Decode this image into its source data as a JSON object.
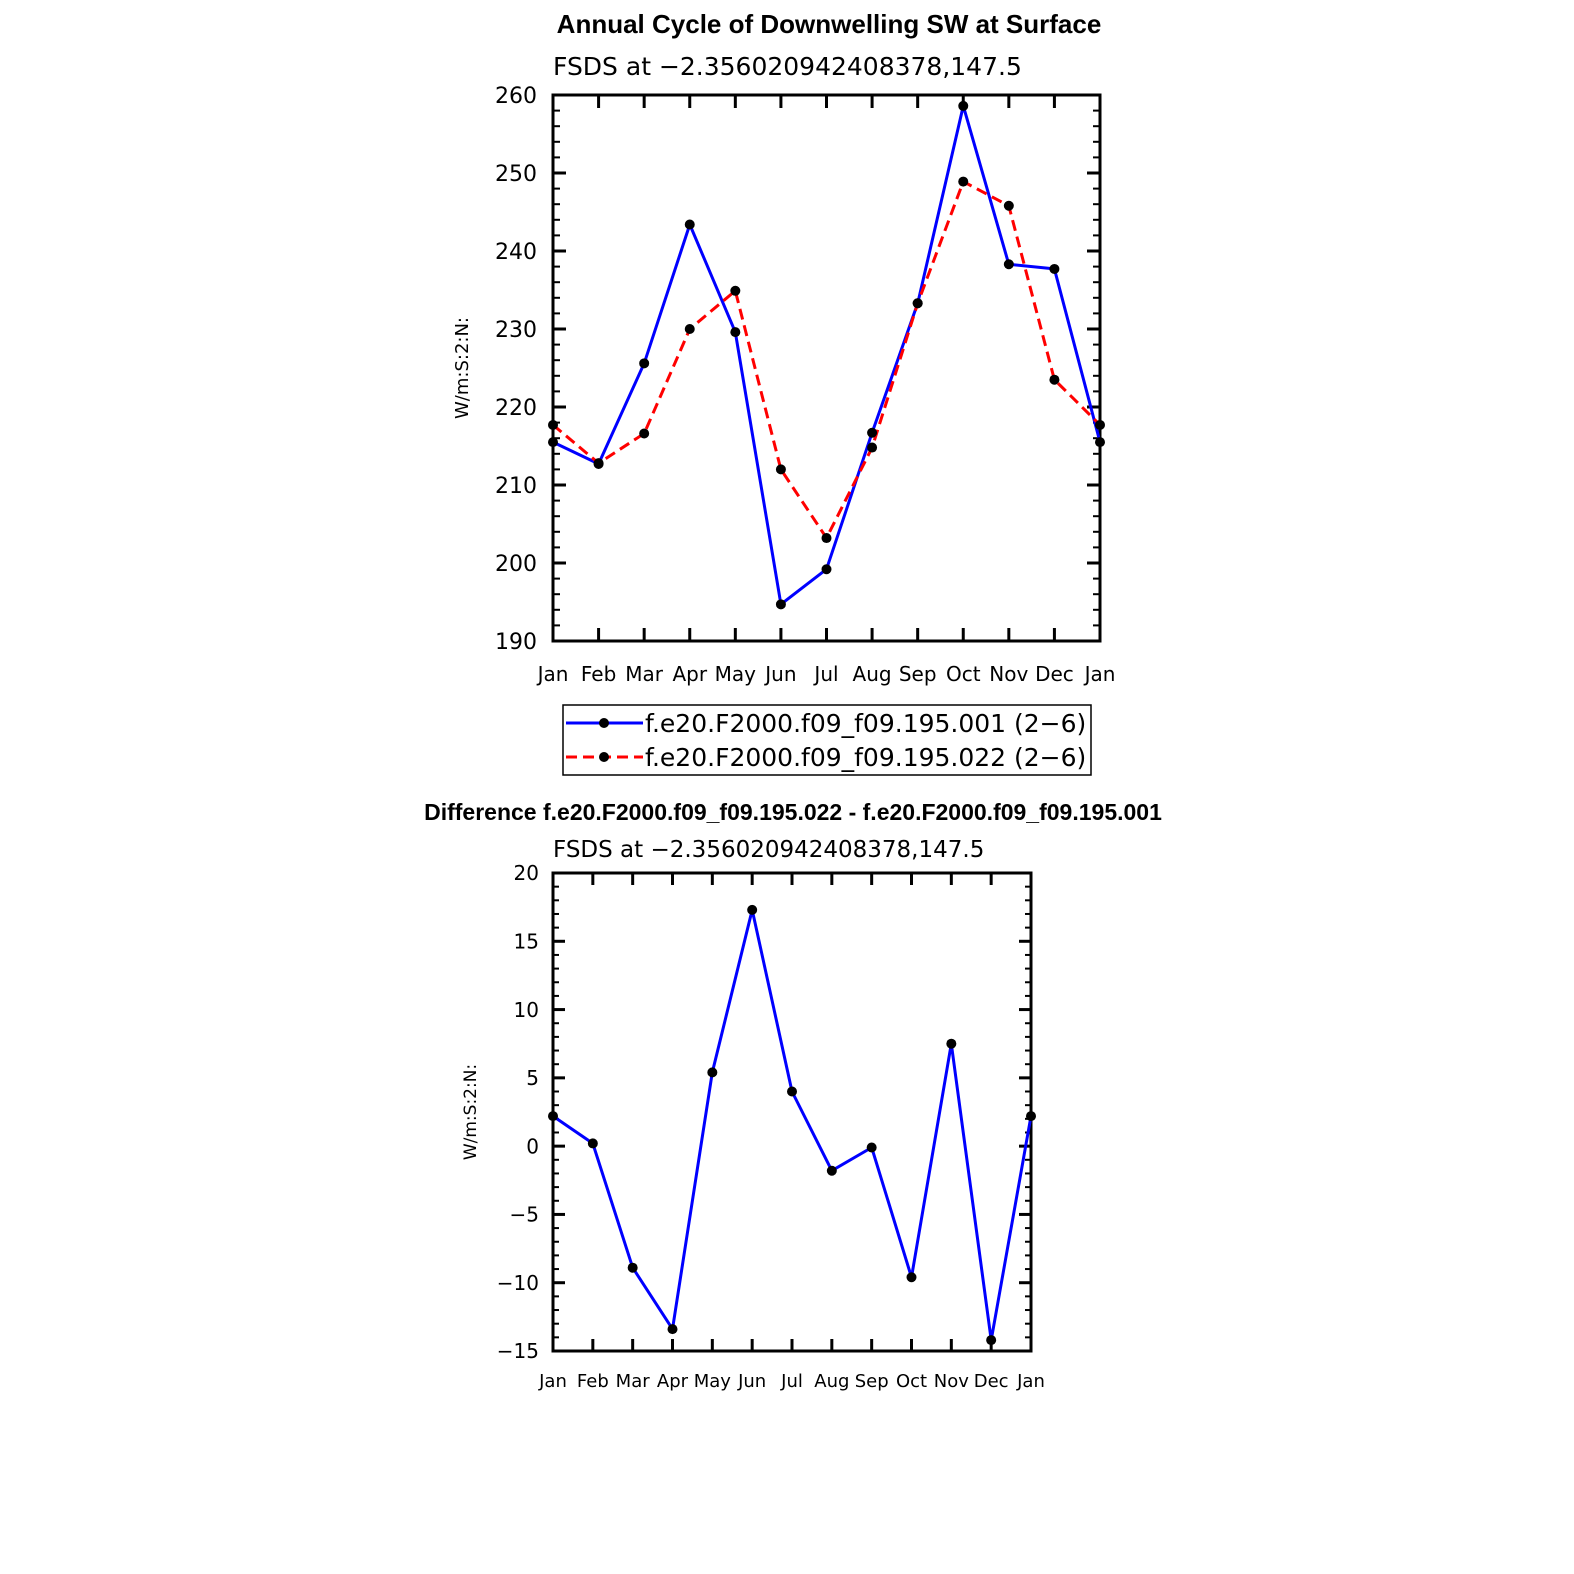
{
  "chart_data": [
    {
      "type": "line",
      "title": "Annual Cycle of Downwelling SW at Surface",
      "subtitle": "FSDS at −2.356020942408378,147.5",
      "ylabel": "W/m:S:2:N:",
      "xlabel": "",
      "categories": [
        "Jan",
        "Feb",
        "Mar",
        "Apr",
        "May",
        "Jun",
        "Jul",
        "Aug",
        "Sep",
        "Oct",
        "Nov",
        "Dec",
        "Jan"
      ],
      "ylim": [
        190,
        260
      ],
      "yticks": [
        "190",
        "200",
        "210",
        "220",
        "230",
        "240",
        "250",
        "260"
      ],
      "grid": false,
      "legend_position": "bottom",
      "series": [
        {
          "name": "f.e20.F2000.f09_f09.195.001 (2−6)",
          "color": "#0000ff",
          "dash": "solid",
          "values": [
            215.5,
            212.7,
            225.6,
            243.4,
            229.6,
            194.7,
            199.2,
            216.7,
            233.3,
            258.6,
            238.3,
            237.7,
            215.5
          ]
        },
        {
          "name": "f.e20.F2000.f09_f09.195.022 (2−6)",
          "color": "#ff0000",
          "dash": "dashed",
          "values": [
            217.7,
            212.8,
            216.6,
            230.0,
            234.9,
            212.0,
            203.2,
            214.8,
            233.3,
            248.9,
            245.8,
            223.5,
            217.7
          ]
        }
      ]
    },
    {
      "type": "line",
      "title": "Difference f.e20.F2000.f09_f09.195.022 - f.e20.F2000.f09_f09.195.001",
      "subtitle": "FSDS at −2.356020942408378,147.5",
      "ylabel": "W/m:S:2:N:",
      "xlabel": "",
      "categories": [
        "Jan",
        "Feb",
        "Mar",
        "Apr",
        "May",
        "Jun",
        "Jul",
        "Aug",
        "Sep",
        "Oct",
        "Nov",
        "Dec",
        "Jan"
      ],
      "ylim": [
        -15,
        20
      ],
      "yticks": [
        "−15",
        "−10",
        "−5",
        "0",
        "5",
        "10",
        "15",
        "20"
      ],
      "grid": false,
      "series": [
        {
          "color": "#0000ff",
          "dash": "solid",
          "values": [
            2.2,
            0.2,
            -8.9,
            -13.4,
            5.4,
            17.3,
            4.0,
            -1.8,
            -0.1,
            -9.6,
            7.5,
            -14.2,
            2.2
          ]
        }
      ]
    }
  ]
}
